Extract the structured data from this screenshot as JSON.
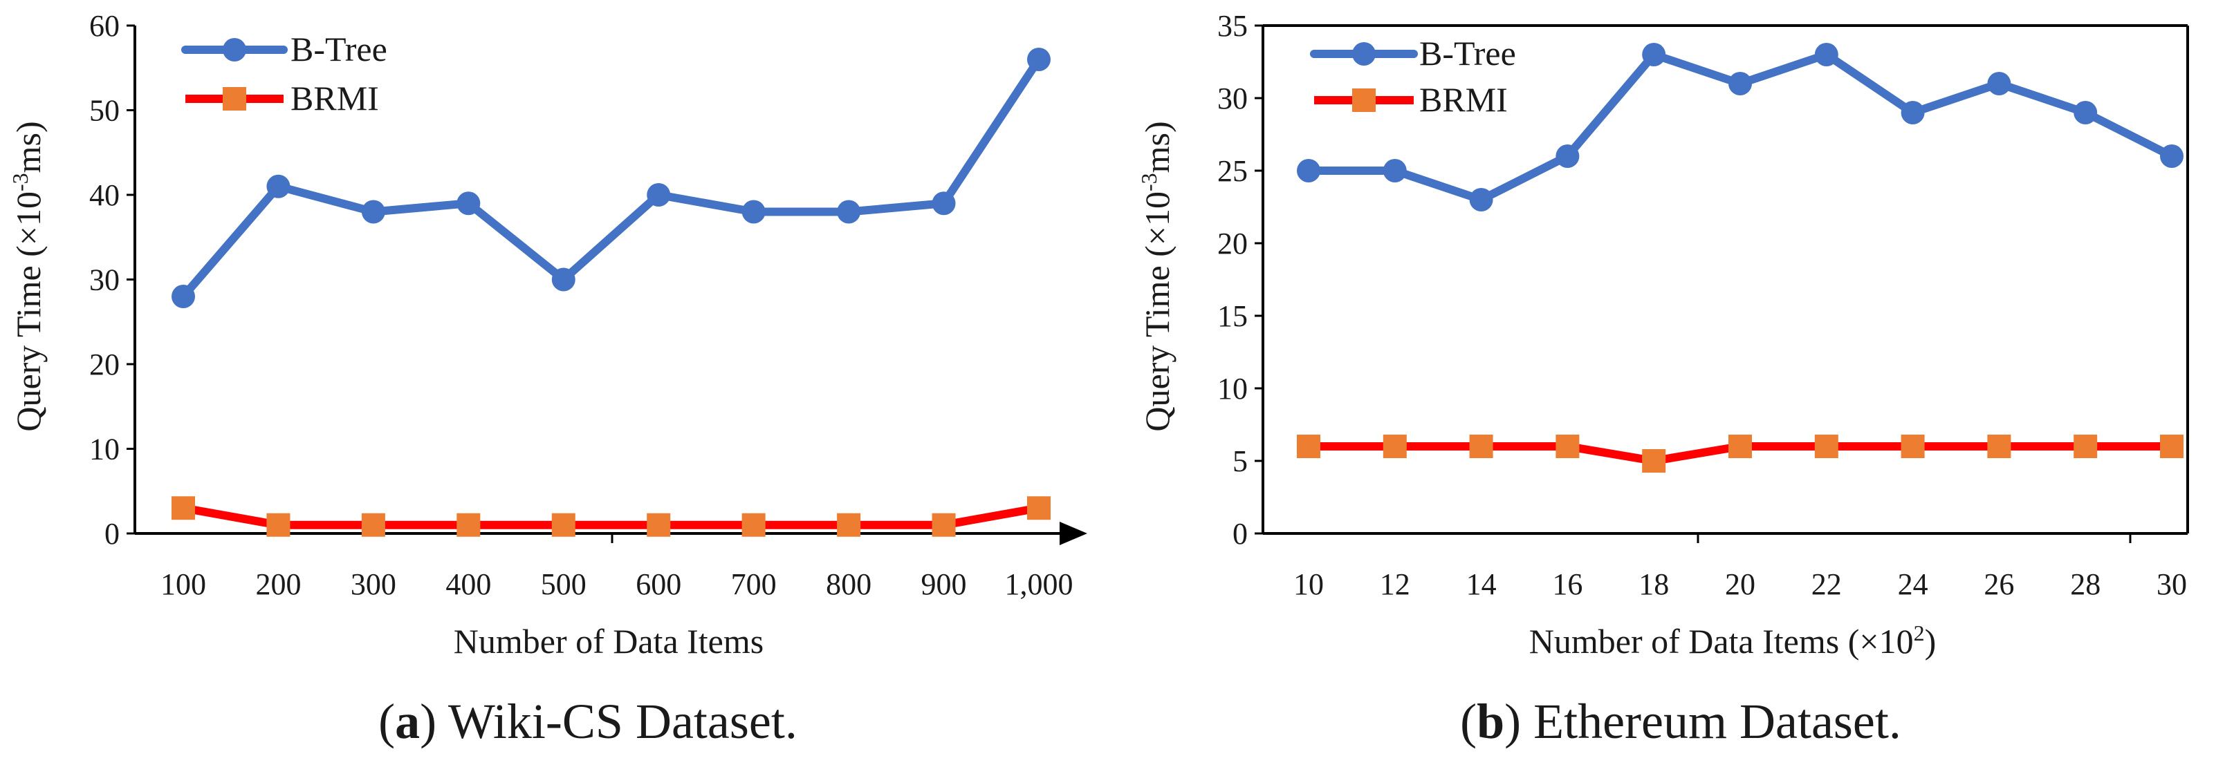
{
  "figure": {
    "captions": [
      {
        "open": "(",
        "letter": "a",
        "close": ")",
        "text": " Wiki-CS Dataset."
      },
      {
        "open": "(",
        "letter": "b",
        "close": ")",
        "text": " Ethereum Dataset."
      }
    ]
  },
  "colors": {
    "btree": "#4472C4",
    "brmi_line": "#FF0000",
    "brmi_marker": "#ED7D31",
    "axis": "#000000"
  },
  "chart_data": [
    {
      "type": "line",
      "title": "",
      "xlabel": "Number of Data Items",
      "ylabel_main": "Query Time (",
      "ylabel_mult": "×10",
      "ylabel_exp": "-3",
      "ylabel_unit": "ms)",
      "categories": [
        "100",
        "200",
        "300",
        "400",
        "500",
        "600",
        "700",
        "800",
        "900",
        "1,000"
      ],
      "yticks": [
        "0",
        "10",
        "20",
        "30",
        "40",
        "50",
        "60"
      ],
      "ylim": [
        0,
        60
      ],
      "legend_position": "top-left",
      "series": [
        {
          "name": "B-Tree",
          "marker": "circle",
          "values": [
            28,
            41,
            38,
            39,
            30,
            40,
            38,
            38,
            39,
            56
          ]
        },
        {
          "name": "BRMI",
          "marker": "square",
          "values": [
            3,
            1,
            1,
            1,
            1,
            1,
            1,
            1,
            1,
            3
          ]
        }
      ]
    },
    {
      "type": "line",
      "title": "",
      "xlabel": "Number of Data Items (",
      "xlabel_mult": "×10",
      "xlabel_exp": "2",
      "xlabel_close": ")",
      "ylabel_main": "Query Time (",
      "ylabel_mult": "×10",
      "ylabel_exp": "-3",
      "ylabel_unit": "ms)",
      "categories": [
        "10",
        "12",
        "14",
        "16",
        "18",
        "20",
        "22",
        "24",
        "26",
        "28",
        "30"
      ],
      "yticks": [
        "0",
        "5",
        "10",
        "15",
        "20",
        "25",
        "30",
        "35"
      ],
      "ylim": [
        0,
        35
      ],
      "legend_position": "top-left",
      "series": [
        {
          "name": "B-Tree",
          "marker": "circle",
          "values": [
            25,
            25,
            23,
            26,
            33,
            31,
            33,
            29,
            31,
            29,
            26
          ]
        },
        {
          "name": "BRMI",
          "marker": "square",
          "values": [
            6,
            6,
            6,
            6,
            5,
            6,
            6,
            6,
            6,
            6,
            6
          ]
        }
      ]
    }
  ]
}
